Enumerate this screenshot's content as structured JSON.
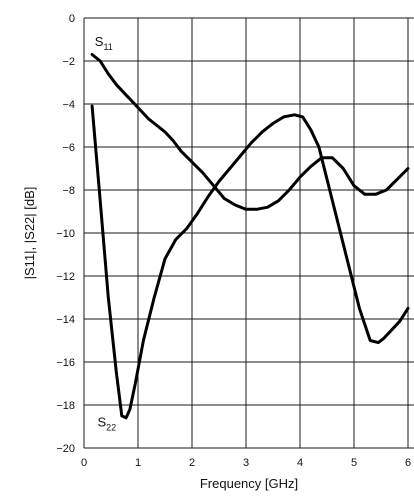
{
  "chart_data": {
    "type": "line",
    "xlabel": "Frequency [GHz]",
    "ylabel": "|S11|, |S22| [dB]",
    "xlim": [
      0,
      6
    ],
    "ylim": [
      -20,
      0
    ],
    "xticks": [
      0,
      1,
      2,
      3,
      4,
      5,
      6
    ],
    "yticks": [
      0,
      -2,
      -4,
      -6,
      -8,
      -10,
      -12,
      -14,
      -16,
      -18,
      -20
    ],
    "grid": true,
    "series": [
      {
        "name": "S11",
        "label_main": "S",
        "label_sub": "11",
        "x": [
          0.15,
          0.3,
          0.45,
          0.6,
          0.75,
          0.9,
          1.05,
          1.2,
          1.35,
          1.5,
          1.65,
          1.8,
          2.0,
          2.2,
          2.4,
          2.6,
          2.8,
          3.0,
          3.2,
          3.4,
          3.6,
          3.8,
          4.0,
          4.2,
          4.4,
          4.6,
          4.8,
          5.0,
          5.2,
          5.4,
          5.6,
          5.8,
          6.0
        ],
        "y": [
          -1.7,
          -2.0,
          -2.6,
          -3.1,
          -3.5,
          -3.9,
          -4.3,
          -4.7,
          -5.0,
          -5.3,
          -5.7,
          -6.2,
          -6.7,
          -7.2,
          -7.8,
          -8.4,
          -8.7,
          -8.9,
          -8.9,
          -8.8,
          -8.5,
          -8.0,
          -7.4,
          -6.9,
          -6.5,
          -6.5,
          -7.0,
          -7.8,
          -8.2,
          -8.2,
          -8.0,
          -7.5,
          -7.0
        ]
      },
      {
        "name": "S22",
        "label_main": "S",
        "label_sub": "22",
        "x": [
          0.15,
          0.3,
          0.45,
          0.6,
          0.7,
          0.78,
          0.85,
          0.95,
          1.1,
          1.3,
          1.5,
          1.7,
          1.9,
          2.1,
          2.3,
          2.5,
          2.7,
          2.9,
          3.1,
          3.3,
          3.5,
          3.7,
          3.9,
          4.05,
          4.2,
          4.35,
          4.5,
          4.7,
          4.9,
          5.1,
          5.3,
          5.45,
          5.55,
          5.7,
          5.85,
          6.0
        ],
        "y": [
          -4.1,
          -8.5,
          -13.0,
          -16.5,
          -18.5,
          -18.6,
          -18.2,
          -17.0,
          -15.0,
          -13.0,
          -11.2,
          -10.3,
          -9.8,
          -9.1,
          -8.3,
          -7.6,
          -7.0,
          -6.4,
          -5.8,
          -5.3,
          -4.9,
          -4.6,
          -4.5,
          -4.6,
          -5.2,
          -6.0,
          -7.5,
          -9.5,
          -11.5,
          -13.5,
          -15.0,
          -15.1,
          -14.9,
          -14.5,
          -14.1,
          -13.5
        ]
      }
    ]
  }
}
